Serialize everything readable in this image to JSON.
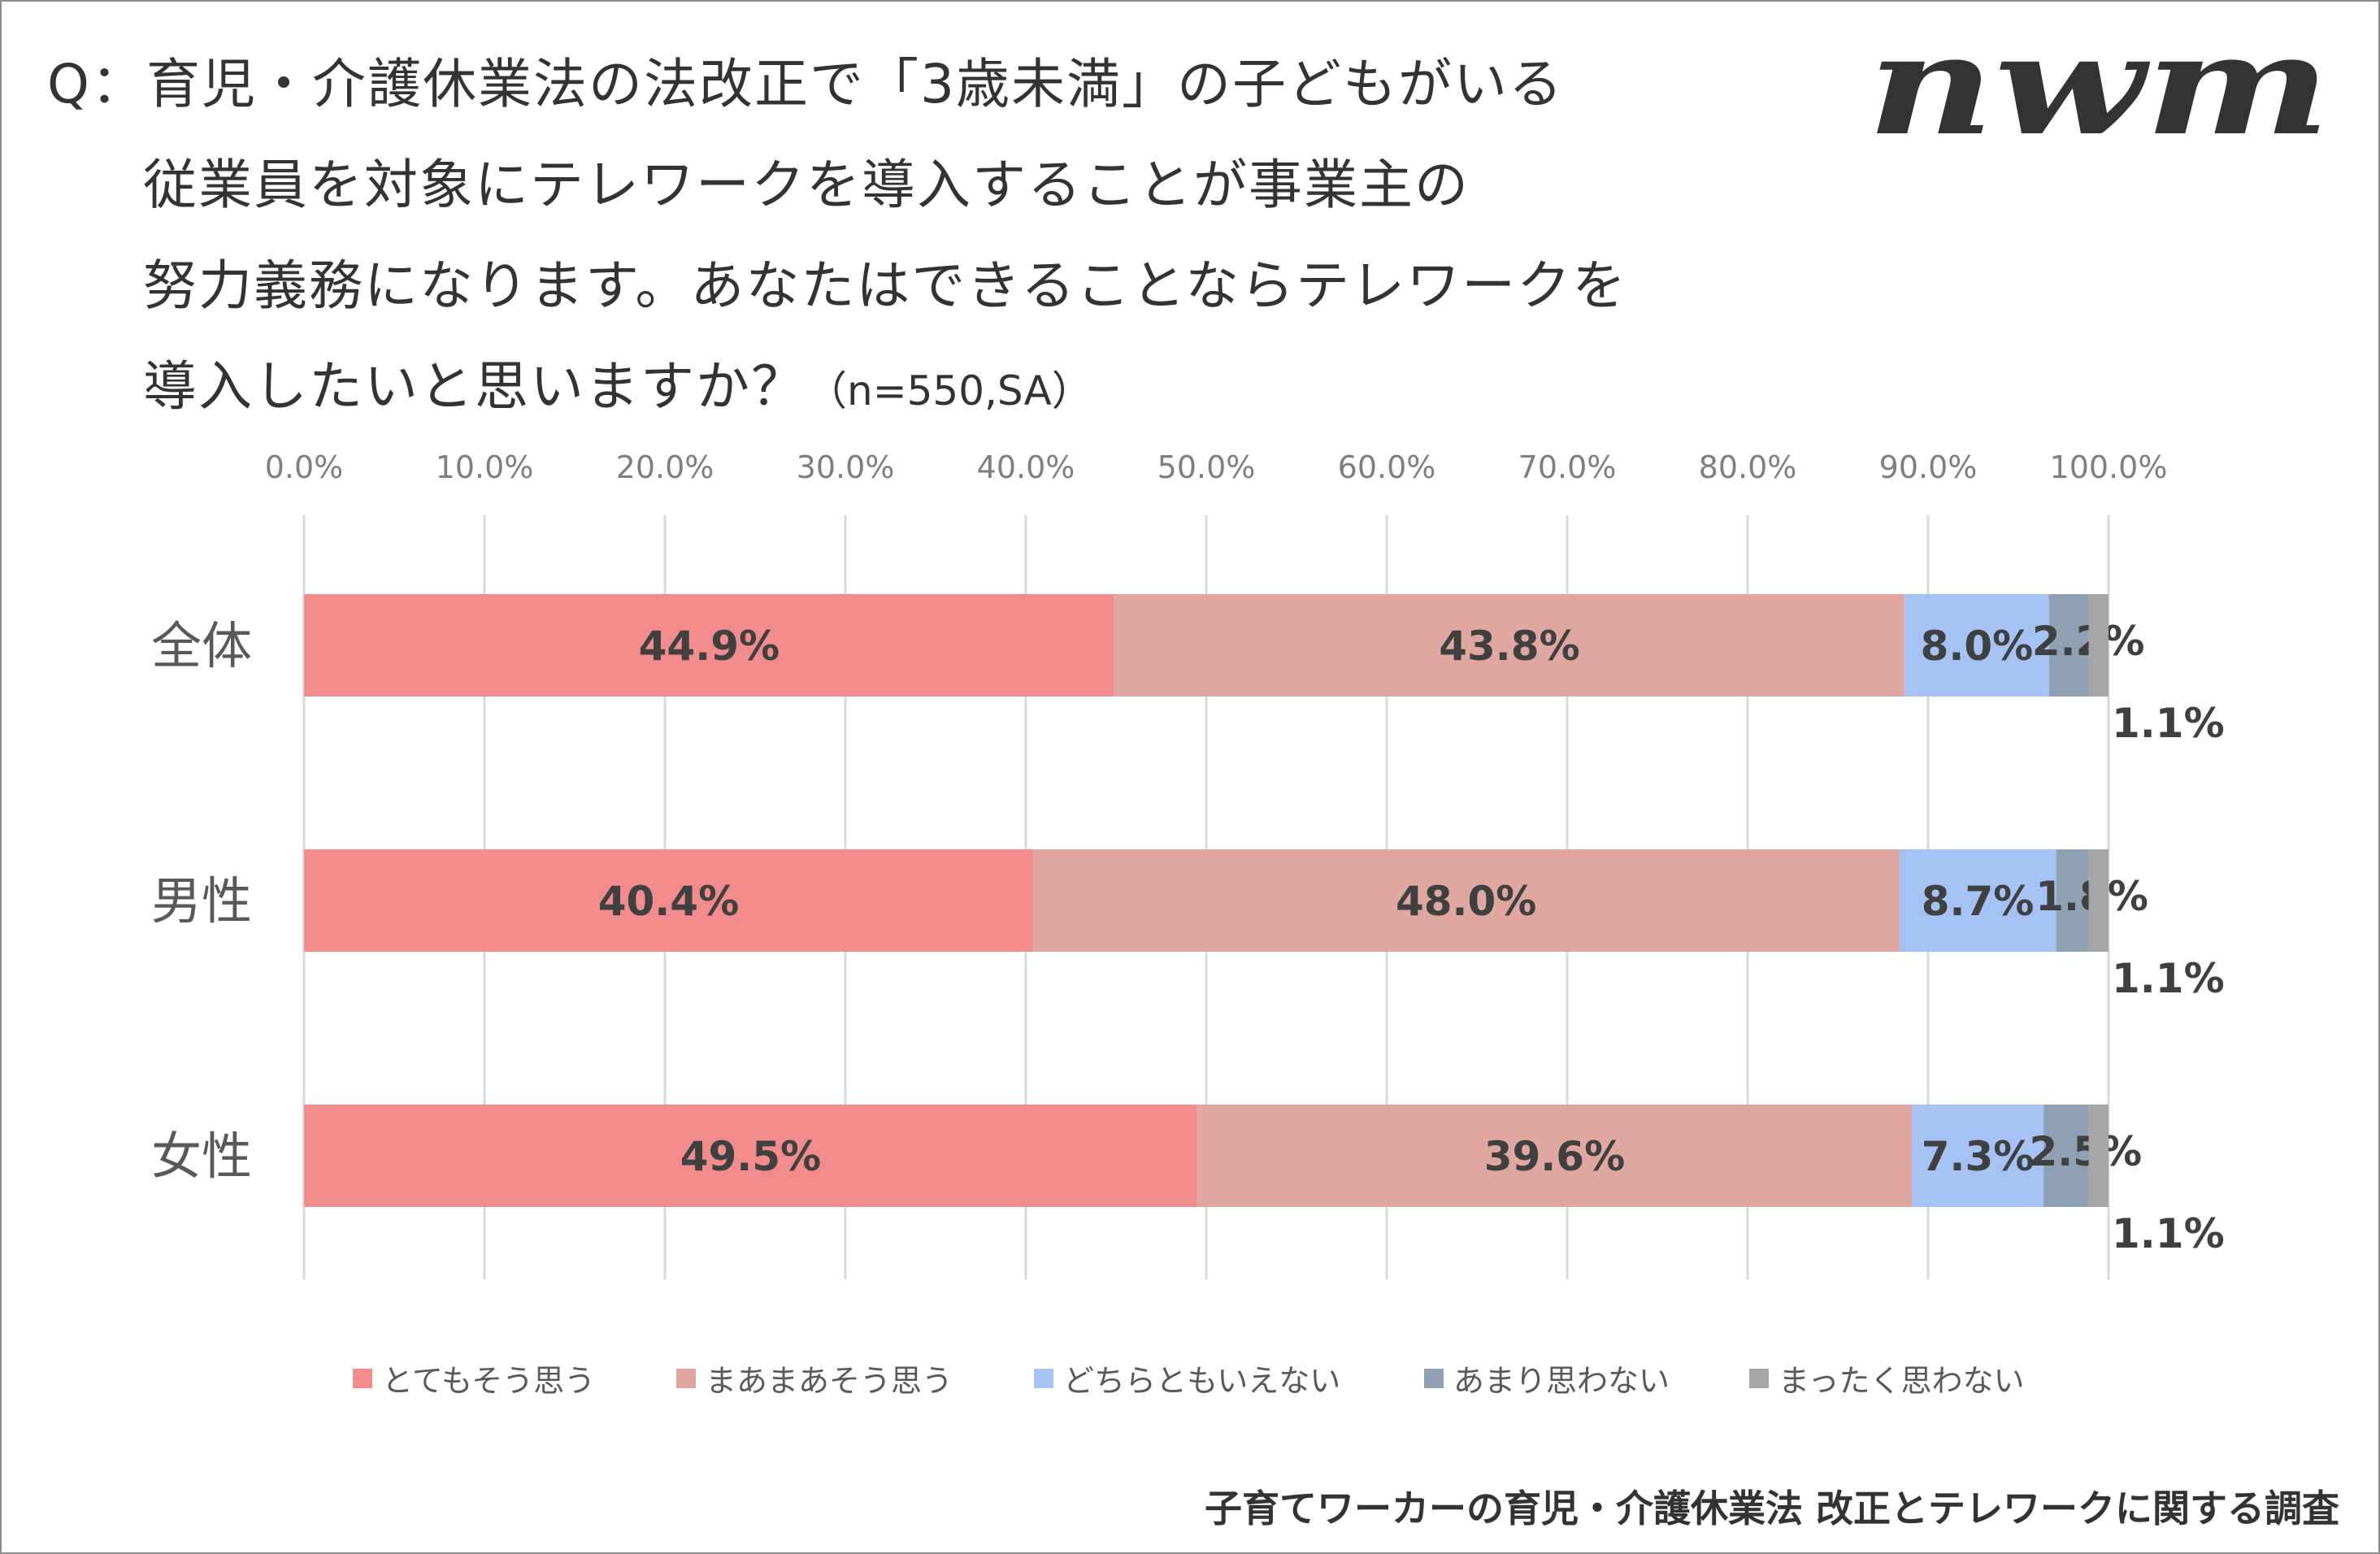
{
  "title_lines": [
    "Q：育児・介護休業法の法改正で「3歳未満」の子どもがいる",
    "従業員を対象にテレワークを導入することが事業主の",
    "努力義務になります。あなたはできることならテレワークを",
    "導入したいと思いますか？"
  ],
  "title_note": "（n=550,SA）",
  "logo_text": "nwm",
  "source": "子育てワーカーの育児・介護休業法 改正とテレワークに関する調査",
  "chart_data": {
    "type": "bar",
    "orientation": "horizontal",
    "stacked": true,
    "categories": [
      "全体",
      "男性",
      "女性"
    ],
    "xlim": [
      0,
      100
    ],
    "ticks": [
      "0.0%",
      "10.0%",
      "20.0%",
      "30.0%",
      "40.0%",
      "50.0%",
      "60.0%",
      "70.0%",
      "80.0%",
      "90.0%",
      "100.0%"
    ],
    "grid": true,
    "legend_position": "bottom",
    "series": [
      {
        "name": "とてもそう思う",
        "color": "#F28B8B",
        "values": [
          44.9,
          40.4,
          49.5
        ],
        "labels": [
          "44.9%",
          "40.4%",
          "49.5%"
        ]
      },
      {
        "name": "まあまあそう思う",
        "color": "#E0A6A0",
        "values": [
          43.8,
          48.0,
          39.6
        ],
        "labels": [
          "43.8%",
          "48.0%",
          "39.6%"
        ]
      },
      {
        "name": "どちらともいえない",
        "color": "#A4C2F4",
        "values": [
          8.0,
          8.7,
          7.3
        ],
        "labels": [
          "8.0%",
          "8.7%",
          "7.3%"
        ]
      },
      {
        "name": "あまり思わない",
        "color": "#8FA0B4",
        "values": [
          2.2,
          1.8,
          2.5
        ],
        "labels": [
          "2.2%",
          "1.8%",
          "2.5%"
        ]
      },
      {
        "name": "まったく思わない",
        "color": "#A6A6A6",
        "values": [
          1.1,
          1.1,
          1.1
        ],
        "labels": [
          "1.1%",
          "1.1%",
          "1.1%"
        ]
      }
    ]
  }
}
